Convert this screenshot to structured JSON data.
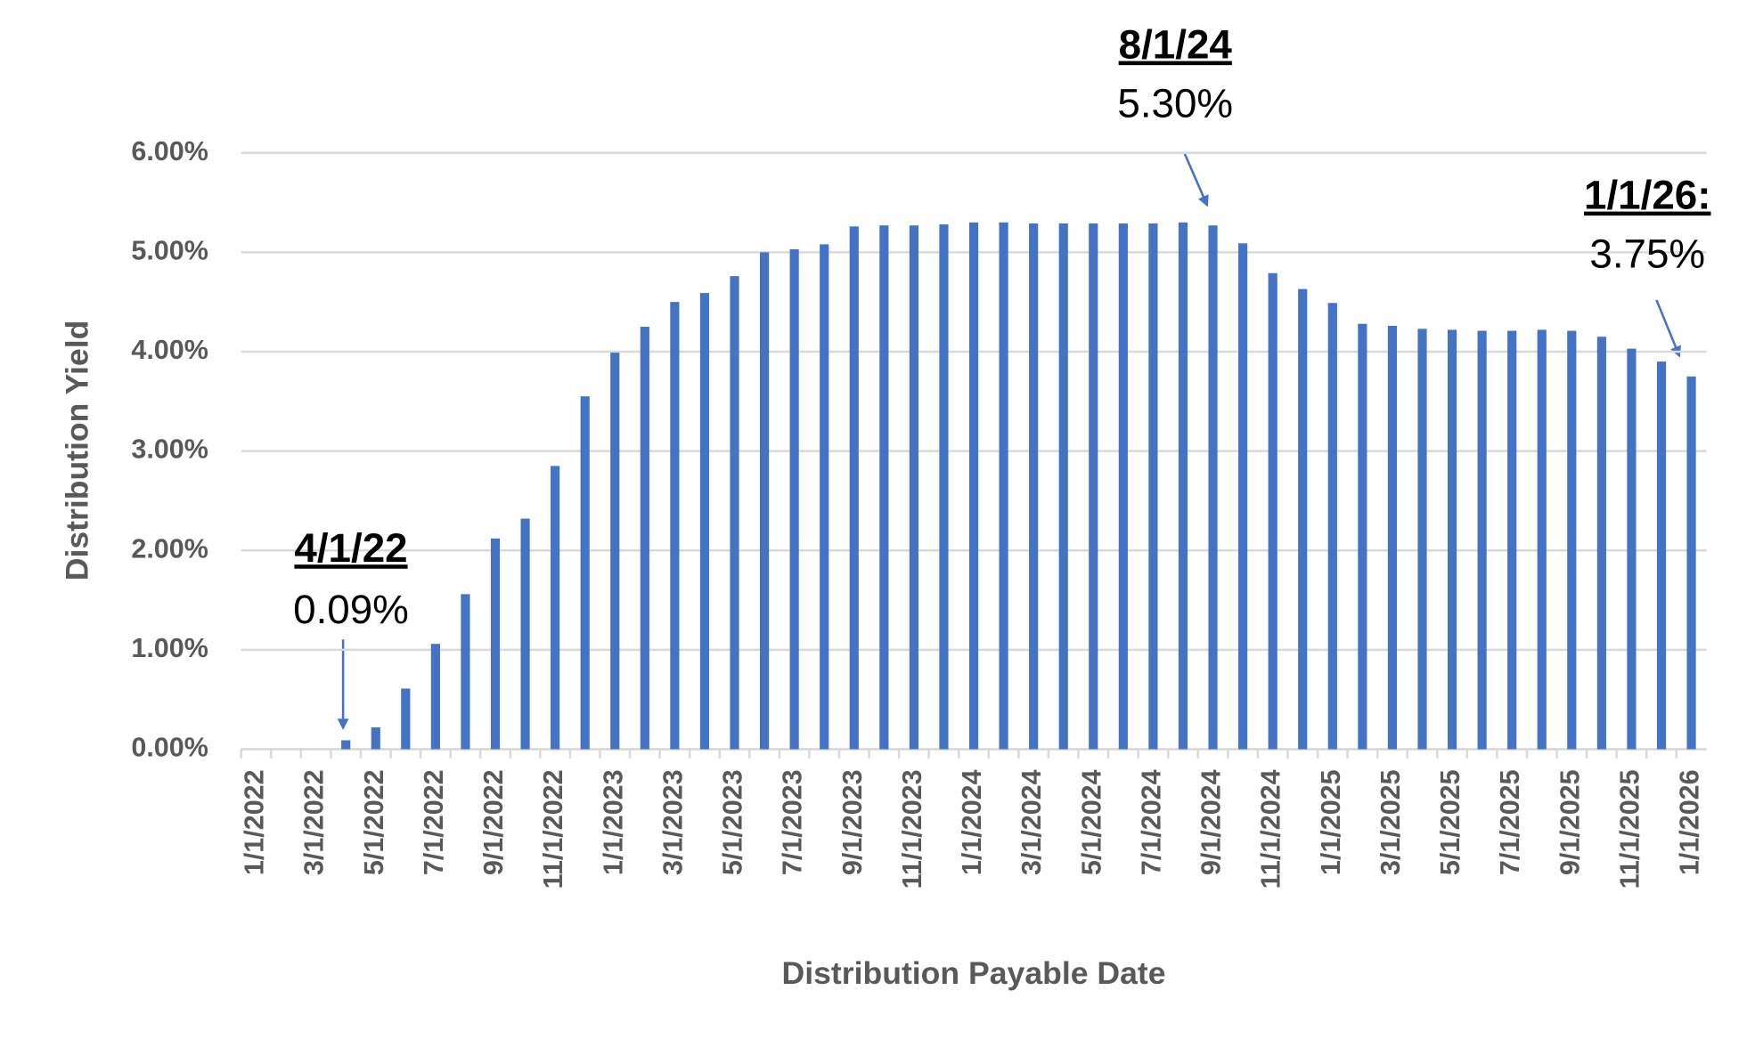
{
  "chart_data": {
    "type": "bar",
    "x_label": "Distribution Payable Date",
    "y_label": "Distribution Yield",
    "categories": [
      "1/1/2022",
      null,
      "3/1/2022",
      null,
      "5/1/2022",
      null,
      "7/1/2022",
      null,
      "9/1/2022",
      null,
      "11/1/2022",
      null,
      "1/1/2023",
      null,
      "3/1/2023",
      null,
      "5/1/2023",
      null,
      "7/1/2023",
      null,
      "9/1/2023",
      null,
      "11/1/2023",
      null,
      "1/1/2024",
      null,
      "3/1/2024",
      null,
      "5/1/2024",
      null,
      "7/1/2024",
      null,
      "9/1/2024",
      null,
      "11/1/2024",
      null,
      "1/1/2025",
      null,
      "3/1/2025",
      null,
      "5/1/2025",
      null,
      "7/1/2025",
      null,
      "9/1/2025",
      null,
      "11/1/2025",
      null,
      "1/1/2026"
    ],
    "values": [
      null,
      null,
      null,
      0.09,
      0.22,
      0.61,
      1.06,
      1.56,
      2.12,
      2.32,
      2.85,
      3.55,
      3.99,
      4.25,
      4.5,
      4.59,
      4.76,
      5.0,
      5.03,
      5.08,
      5.26,
      5.27,
      5.27,
      5.28,
      5.3,
      5.3,
      5.29,
      5.29,
      5.29,
      5.29,
      5.29,
      5.3,
      5.27,
      5.09,
      4.79,
      4.63,
      4.49,
      4.28,
      4.26,
      4.23,
      4.22,
      4.21,
      4.21,
      4.22,
      4.21,
      4.15,
      4.03,
      3.9,
      3.75
    ],
    "color": "#4472c4",
    "ylim": [
      0,
      6
    ],
    "yticks": [
      {
        "value": 0,
        "label": "0.00%"
      },
      {
        "value": 1,
        "label": "1.00%"
      },
      {
        "value": 2,
        "label": "2.00%"
      },
      {
        "value": 3,
        "label": "3.00%"
      },
      {
        "value": 4,
        "label": "4.00%"
      },
      {
        "value": 5,
        "label": "5.00%"
      },
      {
        "value": 6,
        "label": "6.00%"
      }
    ],
    "grid": true,
    "annotations": [
      {
        "title": "4/1/22",
        "text": "0.09%"
      },
      {
        "title": "8/1/24",
        "text": "5.30%"
      },
      {
        "title": "1/1/26:",
        "text": "3.75%"
      }
    ]
  }
}
